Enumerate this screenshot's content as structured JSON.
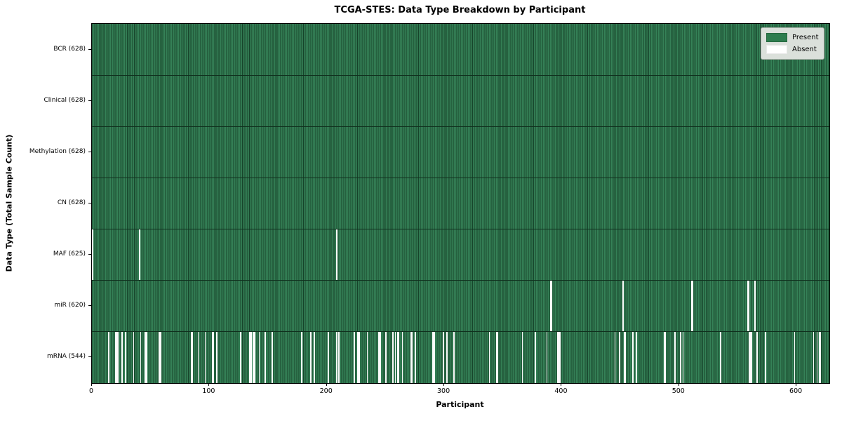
{
  "chart_data": {
    "type": "heatmap",
    "title": "TCGA-STES: Data Type Breakdown by Participant",
    "xlabel": "Participant",
    "ylabel": "Data Type (Total Sample Count)",
    "x_ticks": [
      0,
      100,
      200,
      300,
      400,
      500,
      600
    ],
    "xlim": [
      0,
      628
    ],
    "n_participants": 628,
    "grid": "off",
    "legend": {
      "position": "upper right",
      "present_label": "Present",
      "absent_label": "Absent"
    },
    "colors": {
      "present": "#2e7d4f",
      "present_stripe_dark": "#16432a",
      "present_stripe_light": "#358157",
      "absent": "#ffffff"
    },
    "rows": [
      {
        "label": "BCR (628)",
        "data_type": "BCR",
        "present_count": 628,
        "absent_participants": []
      },
      {
        "label": "Clinical (628)",
        "data_type": "Clinical",
        "present_count": 628,
        "absent_participants": []
      },
      {
        "label": "Methylation (628)",
        "data_type": "Methylation",
        "present_count": 628,
        "absent_participants": []
      },
      {
        "label": "CN (628)",
        "data_type": "CN",
        "present_count": 628,
        "absent_participants": []
      },
      {
        "label": "MAF (625)",
        "data_type": "MAF",
        "present_count": 625,
        "absent_participants": [
          0,
          40,
          208
        ]
      },
      {
        "label": "miR (620)",
        "data_type": "miR",
        "present_count": 620,
        "absent_participants": [
          390,
          391,
          452,
          510,
          511,
          558,
          559,
          564
        ]
      },
      {
        "label": "mRNA (544)",
        "data_type": "mRNA",
        "present_count": 544,
        "absent_participants": [
          14,
          20,
          21,
          22,
          25,
          28,
          35,
          41,
          45,
          46,
          57,
          58,
          84,
          85,
          90,
          96,
          102,
          103,
          106,
          126,
          134,
          135,
          137,
          138,
          142,
          147,
          153,
          178,
          186,
          189,
          201,
          208,
          210,
          223,
          226,
          227,
          234,
          244,
          245,
          250,
          256,
          258,
          260,
          261,
          264,
          271,
          272,
          275,
          290,
          291,
          299,
          302,
          308,
          338,
          344,
          345,
          366,
          377,
          387,
          396,
          397,
          398,
          445,
          449,
          453,
          454,
          460,
          463,
          487,
          488,
          496,
          501,
          503,
          535,
          559,
          560,
          561,
          566,
          573,
          598,
          614,
          617,
          619,
          620
        ]
      }
    ]
  }
}
